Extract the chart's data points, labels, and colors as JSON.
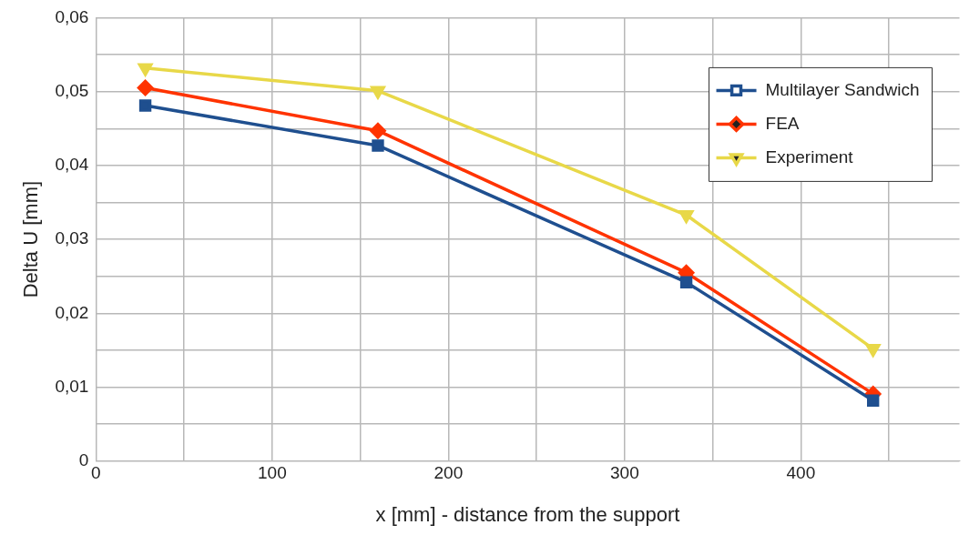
{
  "chart_data": {
    "type": "line",
    "xlabel": "x [mm] - distance from the support",
    "ylabel": "Delta U [mm]",
    "x": [
      28,
      160,
      335,
      441
    ],
    "series": [
      {
        "name": "Multilayer Sandwich",
        "color": "#1f4f8f",
        "marker": "square",
        "values": [
          0.0481,
          0.0427,
          0.0242,
          0.0082
        ]
      },
      {
        "name": "FEA",
        "color": "#ff3300",
        "marker": "diamond",
        "values": [
          0.0505,
          0.0447,
          0.0255,
          0.0091
        ]
      },
      {
        "name": "Experiment",
        "color": "#e8d848",
        "marker": "triangle",
        "values": [
          0.0532,
          0.0501,
          0.0333,
          0.0152
        ]
      }
    ],
    "xlim": [
      0,
      490
    ],
    "xticks": [
      0,
      {
        "value": 50,
        "label": null
      },
      100,
      {
        "value": 150,
        "label": null
      },
      200,
      {
        "value": 250,
        "label": null
      },
      300,
      {
        "value": 350,
        "label": null
      },
      400,
      {
        "value": 450,
        "label": null
      }
    ],
    "ylim": [
      0,
      0.06
    ],
    "yticks": [
      {
        "value": 0,
        "label": "0"
      },
      {
        "value": 0.005,
        "label": null
      },
      {
        "value": 0.01,
        "label": "0,01"
      },
      {
        "value": 0.015,
        "label": null
      },
      {
        "value": 0.02,
        "label": "0,02"
      },
      {
        "value": 0.025,
        "label": null
      },
      {
        "value": 0.03,
        "label": "0,03"
      },
      {
        "value": 0.035,
        "label": null
      },
      {
        "value": 0.04,
        "label": "0,04"
      },
      {
        "value": 0.045,
        "label": null
      },
      {
        "value": 0.05,
        "label": "0,05"
      },
      {
        "value": 0.055,
        "label": null
      },
      {
        "value": 0.06,
        "label": "0,06"
      }
    ],
    "grid": true,
    "legend": "top right",
    "line_style": "solid"
  }
}
